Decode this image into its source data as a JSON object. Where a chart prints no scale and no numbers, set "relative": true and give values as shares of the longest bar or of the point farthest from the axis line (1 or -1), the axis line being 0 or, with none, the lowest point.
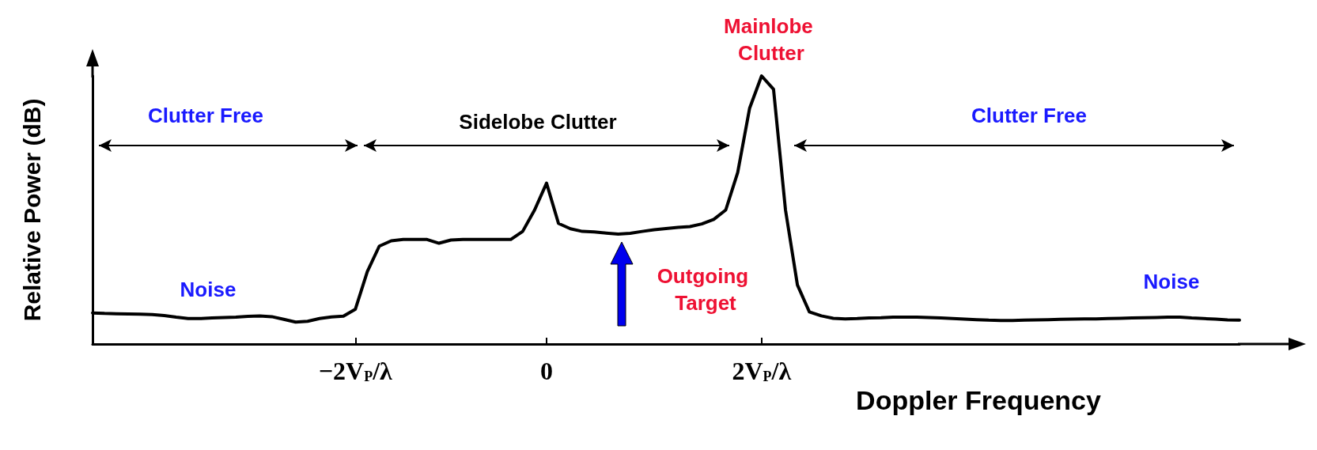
{
  "chart_data": {
    "type": "line",
    "relative": true,
    "xlabel": "Doppler Frequency",
    "ylabel": "Relative Power (dB)",
    "categories": [
      null,
      null,
      null,
      null,
      null,
      null,
      null,
      null,
      null,
      null,
      null,
      null,
      null,
      null,
      null,
      null,
      null,
      null,
      null,
      null,
      null,
      null,
      "−2V$_{P}$/λ",
      null,
      null,
      null,
      null,
      null,
      null,
      null,
      null,
      null,
      null,
      null,
      null,
      null,
      null,
      null,
      "0",
      null,
      null,
      null,
      null,
      null,
      null,
      null,
      null,
      null,
      null,
      null,
      null,
      null,
      null,
      null,
      null,
      null,
      "2V$_{P}$/λ",
      null,
      null,
      null,
      null,
      null,
      null,
      null,
      null,
      null,
      null,
      null,
      null,
      null,
      null,
      null,
      null,
      null,
      null,
      null,
      null,
      null,
      null,
      null,
      null,
      null,
      null,
      null,
      null,
      null,
      null,
      null,
      null,
      null,
      null,
      null,
      null,
      null,
      null,
      null,
      null
    ],
    "series": [
      {
        "color": "#000000",
        "values": [
          0.116,
          0.114,
          0.113,
          0.112,
          0.111,
          0.11,
          0.106,
          0.1,
          0.095,
          0.095,
          0.097,
          0.099,
          0.1,
          0.103,
          0.105,
          0.102,
          0.092,
          0.082,
          0.085,
          0.095,
          0.101,
          0.104,
          0.13,
          0.27,
          0.365,
          0.385,
          0.39,
          0.39,
          0.39,
          0.376,
          0.388,
          0.39,
          0.39,
          0.39,
          0.39,
          0.39,
          0.42,
          0.5,
          0.6,
          0.45,
          0.43,
          0.42,
          0.418,
          0.414,
          0.41,
          0.413,
          0.42,
          0.426,
          0.431,
          0.435,
          0.438,
          0.448,
          0.465,
          0.5,
          0.64,
          0.88,
          1.0,
          0.95,
          0.5,
          0.22,
          0.12,
          0.105,
          0.096,
          0.094,
          0.095,
          0.097,
          0.098,
          0.1,
          0.1,
          0.1,
          0.099,
          0.097,
          0.095,
          0.093,
          0.091,
          0.089,
          0.088,
          0.088,
          0.089,
          0.09,
          0.091,
          0.092,
          0.093,
          0.094,
          0.094,
          0.095,
          0.096,
          0.097,
          0.098,
          0.099,
          0.1,
          0.1,
          0.097,
          0.095,
          0.093,
          0.09,
          0.089
        ]
      }
    ],
    "annotations": [
      "Clutter Free",
      "Sidelobe Clutter",
      "Clutter Free",
      "Mainlobe Clutter",
      "Noise",
      "Outgoing Target",
      "Noise"
    ],
    "grid": false,
    "marker": "none",
    "line_style": "solid"
  }
}
